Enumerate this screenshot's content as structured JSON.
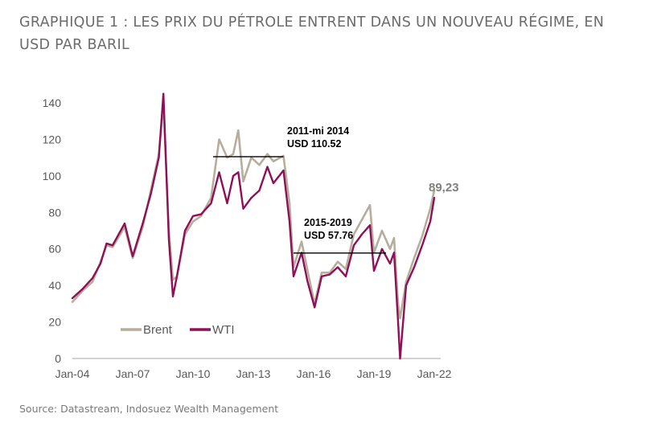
{
  "title": "GRAPHIQUE 1 : LES PRIX DU PÉTROLE ENTRENT DANS UN NOUVEAU RÉGIME, EN USD PAR BARIL",
  "source": "Source: Datastream, Indosuez Wealth Management",
  "chart_data": {
    "type": "line",
    "title": "GRAPHIQUE 1 : LES PRIX DU PÉTROLE ENTRENT DANS UN NOUVEAU RÉGIME, EN USD PAR BARIL",
    "xlabel": "",
    "ylabel": "",
    "ylim": [
      0,
      140
    ],
    "xlim": [
      2004.0,
      2022.0
    ],
    "y_ticks": [
      "0",
      "20",
      "40",
      "60",
      "80",
      "100",
      "120",
      "140"
    ],
    "x_ticks": [
      "Jan-04",
      "Jan-07",
      "Jan-10",
      "Jan-13",
      "Jan-16",
      "Jan-19",
      "Jan-22"
    ],
    "grid": false,
    "legend_position": "bottom-left",
    "series": [
      {
        "name": "Brent",
        "color": "#b7ad9c",
        "x": [
          2004.0,
          2004.5,
          2005.0,
          2005.4,
          2005.7,
          2006.0,
          2006.6,
          2007.0,
          2007.5,
          2007.9,
          2008.3,
          2008.53,
          2008.8,
          2009.0,
          2009.2,
          2009.6,
          2010.0,
          2010.4,
          2010.9,
          2011.3,
          2011.7,
          2012.0,
          2012.25,
          2012.5,
          2012.9,
          2013.3,
          2013.7,
          2014.0,
          2014.5,
          2014.8,
          2015.0,
          2015.4,
          2015.7,
          2016.05,
          2016.4,
          2016.8,
          2017.2,
          2017.6,
          2018.0,
          2018.4,
          2018.8,
          2019.0,
          2019.4,
          2019.8,
          2020.0,
          2020.2,
          2020.3,
          2020.6,
          2021.0,
          2021.4,
          2021.8,
          2022.0
        ],
        "y": [
          31,
          37,
          42,
          53,
          62,
          61,
          72,
          55,
          72,
          92,
          112,
          140,
          70,
          43,
          45,
          68,
          75,
          78,
          88,
          120,
          110,
          112,
          125,
          97,
          110,
          106,
          112,
          108,
          111,
          85,
          50,
          64,
          48,
          30,
          47,
          47,
          53,
          49,
          68,
          76,
          84,
          58,
          70,
          60,
          66,
          30,
          22,
          42,
          55,
          67,
          82,
          92
        ]
      },
      {
        "name": "WTI",
        "color": "#8e1057",
        "x": [
          2004.0,
          2004.5,
          2005.0,
          2005.4,
          2005.7,
          2006.0,
          2006.6,
          2007.0,
          2007.5,
          2007.9,
          2008.3,
          2008.53,
          2008.8,
          2009.0,
          2009.2,
          2009.6,
          2010.0,
          2010.4,
          2010.9,
          2011.3,
          2011.7,
          2012.0,
          2012.25,
          2012.5,
          2012.9,
          2013.3,
          2013.7,
          2014.0,
          2014.5,
          2014.8,
          2015.0,
          2015.4,
          2015.7,
          2016.05,
          2016.4,
          2016.8,
          2017.2,
          2017.6,
          2018.0,
          2018.4,
          2018.8,
          2019.0,
          2019.4,
          2019.8,
          2020.0,
          2020.2,
          2020.3,
          2020.6,
          2021.0,
          2021.4,
          2021.8,
          2022.0
        ],
        "y": [
          33,
          38,
          44,
          52,
          63,
          62,
          74,
          56,
          74,
          90,
          110,
          145,
          65,
          34,
          45,
          70,
          78,
          79,
          85,
          102,
          85,
          100,
          102,
          82,
          88,
          92,
          105,
          96,
          103,
          75,
          45,
          58,
          42,
          28,
          45,
          46,
          50,
          45,
          62,
          68,
          73,
          48,
          60,
          52,
          58,
          20,
          0,
          40,
          50,
          62,
          75,
          88
        ]
      }
    ],
    "annotations": [
      {
        "label_line1": "2011-mi 2014",
        "label_line2": "USD 110.52",
        "x_start": 2011.0,
        "x_end": 2014.5,
        "y": 110.52
      },
      {
        "label_line1": "2015-2019",
        "label_line2": "USD 57.76",
        "x_start": 2015.0,
        "x_end": 2019.6,
        "y": 57.76
      }
    ],
    "last_value_label": "89,23",
    "last_value": 89.23
  }
}
